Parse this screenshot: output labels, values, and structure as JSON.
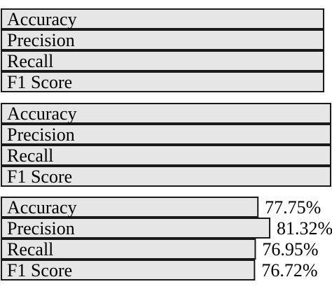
{
  "chart_data": [
    {
      "type": "bar",
      "orientation": "horizontal",
      "categories": [
        "Accuracy",
        "Precision",
        "Recall",
        "F1 Score"
      ],
      "values": [
        null,
        null,
        null,
        null
      ],
      "value_labels": [
        "",
        "",
        "",
        ""
      ]
    },
    {
      "type": "bar",
      "orientation": "horizontal",
      "categories": [
        "Accuracy",
        "Precision",
        "Recall",
        "F1 Score"
      ],
      "values": [
        null,
        null,
        null,
        null
      ],
      "value_labels": [
        "",
        "",
        "",
        ""
      ]
    },
    {
      "type": "bar",
      "orientation": "horizontal",
      "categories": [
        "Accuracy",
        "Precision",
        "Recall",
        "F1 Score"
      ],
      "values": [
        77.75,
        81.32,
        76.95,
        76.72
      ],
      "value_labels": [
        "77.75%",
        "81.32%",
        "76.95%",
        "76.72%"
      ]
    }
  ]
}
